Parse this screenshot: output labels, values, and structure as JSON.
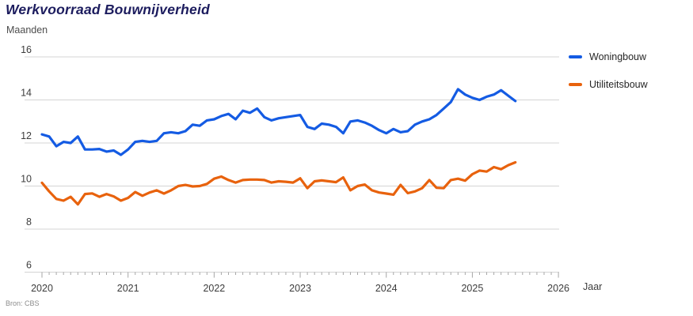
{
  "chart": {
    "title": "Werkvoorraad Bouwnijverheid",
    "y_unit_label": "Maanden",
    "x_axis_title": "Jaar",
    "source": "Bron: CBS"
  },
  "legend": {
    "items": [
      {
        "label": "Woningbouw",
        "color": "#145BE3"
      },
      {
        "label": "Utiliteitsbouw",
        "color": "#E8620D"
      }
    ]
  },
  "chart_data": {
    "type": "line",
    "title": "Werkvoorraad Bouwnijverheid",
    "ylabel": "Maanden",
    "xlabel": "Jaar",
    "ylim": [
      6,
      16
    ],
    "y_ticks": [
      6,
      8,
      10,
      12,
      14,
      16
    ],
    "x_year_ticks": [
      "2020",
      "2021",
      "2022",
      "2023",
      "2024",
      "2025",
      "2026"
    ],
    "x_start": "2020-01",
    "x_end": "2025-07",
    "frequency": "monthly",
    "grid": "horizontal",
    "legend_position": "right",
    "series": [
      {
        "name": "Woningbouw",
        "color": "#145BE3",
        "values": [
          12.4,
          12.3,
          11.85,
          12.05,
          12.0,
          12.3,
          11.7,
          11.7,
          11.72,
          11.6,
          11.65,
          11.45,
          11.7,
          12.05,
          12.1,
          12.05,
          12.1,
          12.45,
          12.5,
          12.45,
          12.55,
          12.85,
          12.8,
          13.05,
          13.1,
          13.25,
          13.35,
          13.1,
          13.5,
          13.4,
          13.6,
          13.2,
          13.05,
          13.15,
          13.2,
          13.25,
          13.3,
          12.75,
          12.65,
          12.9,
          12.85,
          12.75,
          12.45,
          13.0,
          13.05,
          12.95,
          12.8,
          12.6,
          12.45,
          12.65,
          12.5,
          12.55,
          12.85,
          13.0,
          13.1,
          13.3,
          13.6,
          13.9,
          14.5,
          14.25,
          14.1,
          14.0,
          14.15,
          14.25,
          14.45,
          14.2,
          13.95
        ]
      },
      {
        "name": "Utiliteitsbouw",
        "color": "#E8620D",
        "values": [
          10.15,
          9.75,
          9.4,
          9.32,
          9.5,
          9.15,
          9.63,
          9.66,
          9.5,
          9.63,
          9.52,
          9.32,
          9.45,
          9.72,
          9.55,
          9.7,
          9.8,
          9.65,
          9.8,
          10.0,
          10.05,
          9.98,
          10.0,
          10.1,
          10.34,
          10.44,
          10.28,
          10.16,
          10.28,
          10.3,
          10.3,
          10.28,
          10.16,
          10.22,
          10.2,
          10.16,
          10.36,
          9.9,
          10.22,
          10.26,
          10.22,
          10.18,
          10.4,
          9.8,
          10.0,
          10.07,
          9.8,
          9.7,
          9.65,
          9.6,
          10.05,
          9.67,
          9.75,
          9.9,
          10.28,
          9.92,
          9.9,
          10.28,
          10.34,
          10.25,
          10.55,
          10.72,
          10.67,
          10.88,
          10.78,
          10.97,
          11.1
        ]
      }
    ]
  }
}
